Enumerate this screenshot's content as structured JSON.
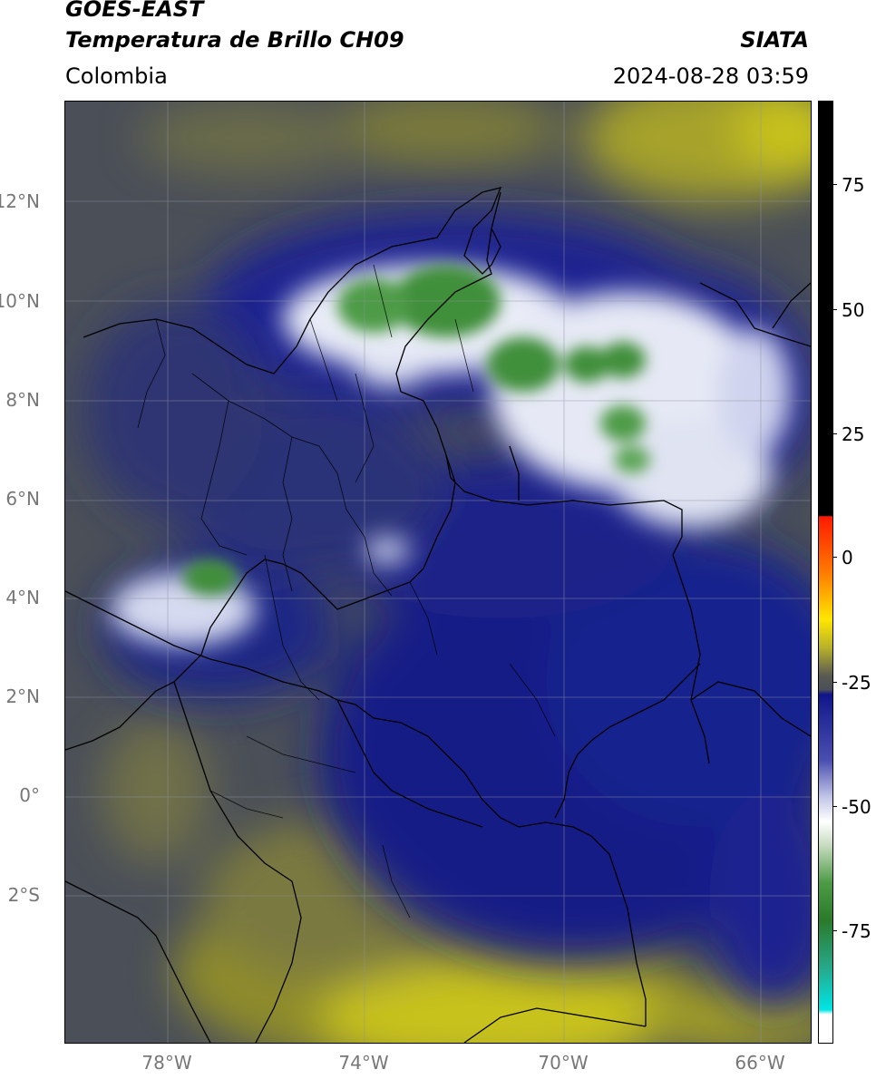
{
  "header": {
    "satellite": "GOES-EAST",
    "product": "Temperatura de Brillo CH09",
    "brand": "SIATA",
    "region": "Colombia",
    "timestamp": "2024-08-28 03:59"
  },
  "map": {
    "lat_ticks": [
      "12°N",
      "10°N",
      "8°N",
      "6°N",
      "4°N",
      "2°N",
      "0°",
      "2°S"
    ],
    "lon_ticks": [
      "78°W",
      "74°W",
      "70°W",
      "66°W"
    ],
    "extent": {
      "lon": [
        -80,
        -65
      ],
      "lat": [
        -5,
        14
      ]
    }
  },
  "colorbar": {
    "ticks": [
      "75",
      "50",
      "25",
      "0",
      "-25",
      "-50",
      "-75"
    ],
    "range": [
      -95,
      90
    ]
  },
  "colors": {
    "land_gray": "#4a4f58",
    "navy": "#101a8c",
    "white_cloud": "#f2f4fa",
    "green_core": "#3f8f3a",
    "olive": "#8a8a30",
    "yellow": "#c8c21a"
  }
}
